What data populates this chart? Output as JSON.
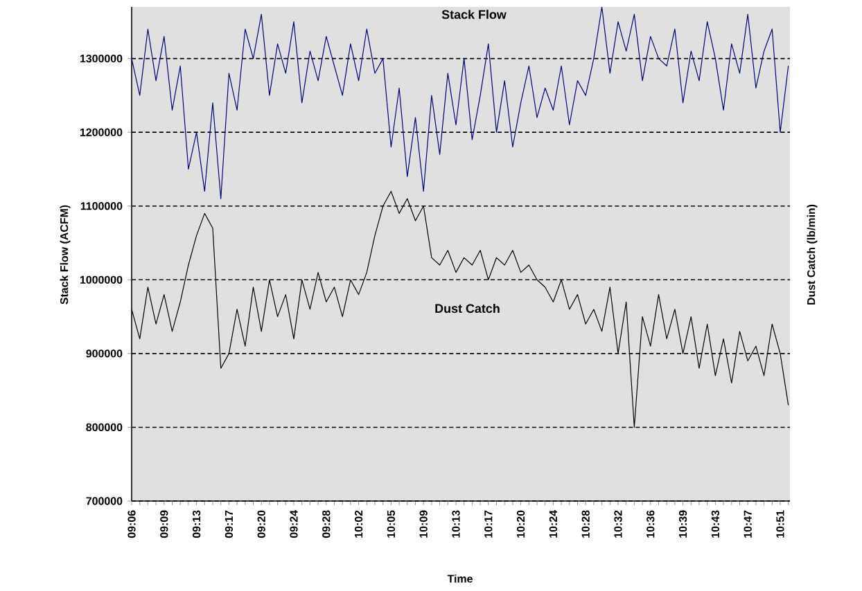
{
  "chart_data": {
    "type": "line",
    "xlabel": "Time",
    "ylabel": "Stack Flow (ACFM)",
    "y2label": "Dust Catch (lb/min)",
    "categories": [
      "09:06",
      null,
      null,
      null,
      "09:09",
      null,
      null,
      null,
      "09:13",
      null,
      null,
      null,
      "09:17",
      null,
      null,
      null,
      "09:20",
      null,
      null,
      null,
      "09:24",
      null,
      null,
      null,
      "09:28",
      null,
      null,
      null,
      "10:02",
      null,
      null,
      null,
      "10:05",
      null,
      null,
      null,
      "10:09",
      null,
      null,
      null,
      "10:13",
      null,
      null,
      null,
      "10:17",
      null,
      null,
      null,
      "10:20",
      null,
      null,
      null,
      "10:24",
      null,
      null,
      null,
      "10:28",
      null,
      null,
      null,
      "10:32",
      null,
      null,
      null,
      "10:36",
      null,
      null,
      null,
      "10:39",
      null,
      null,
      null,
      "10:43",
      null,
      null,
      null,
      "10:47",
      null,
      null,
      null,
      "10:51",
      null
    ],
    "series": [
      {
        "color": "#000080",
        "values": [
          1300000,
          1250000,
          1340000,
          1270000,
          1330000,
          1230000,
          1290000,
          1150000,
          1200000,
          1120000,
          1240000,
          1110000,
          1280000,
          1230000,
          1340000,
          1300000,
          1360000,
          1250000,
          1320000,
          1280000,
          1350000,
          1240000,
          1310000,
          1270000,
          1330000,
          1290000,
          1250000,
          1320000,
          1270000,
          1340000,
          1280000,
          1300000,
          1180000,
          1260000,
          1140000,
          1220000,
          1120000,
          1250000,
          1170000,
          1280000,
          1210000,
          1300000,
          1190000,
          1250000,
          1320000,
          1200000,
          1270000,
          1180000,
          1240000,
          1290000,
          1220000,
          1260000,
          1230000,
          1290000,
          1210000,
          1270000,
          1250000,
          1300000,
          1370000,
          1280000,
          1350000,
          1310000,
          1360000,
          1270000,
          1330000,
          1300000,
          1290000,
          1340000,
          1240000,
          1310000,
          1270000,
          1350000,
          1300000,
          1230000,
          1320000,
          1280000,
          1360000,
          1260000,
          1310000,
          1340000,
          1200000,
          1290000
        ]
      },
      {
        "color": "#000000",
        "values": [
          960000,
          920000,
          990000,
          940000,
          980000,
          930000,
          970000,
          1020000,
          1060000,
          1090000,
          1070000,
          880000,
          900000,
          960000,
          910000,
          990000,
          930000,
          1000000,
          950000,
          980000,
          920000,
          1000000,
          960000,
          1010000,
          970000,
          990000,
          950000,
          1000000,
          980000,
          1010000,
          1060000,
          1100000,
          1120000,
          1090000,
          1110000,
          1080000,
          1100000,
          1030000,
          1020000,
          1040000,
          1010000,
          1030000,
          1020000,
          1040000,
          1000000,
          1030000,
          1020000,
          1040000,
          1010000,
          1020000,
          1000000,
          990000,
          970000,
          1000000,
          960000,
          980000,
          940000,
          960000,
          930000,
          990000,
          900000,
          970000,
          800000,
          950000,
          910000,
          980000,
          920000,
          960000,
          900000,
          950000,
          880000,
          940000,
          870000,
          920000,
          860000,
          930000,
          890000,
          910000,
          870000,
          940000,
          900000,
          830000
        ]
      }
    ],
    "ylim": [
      700000,
      1370000
    ],
    "yticks": [
      700000,
      800000,
      900000,
      1000000,
      1100000,
      1200000,
      1300000
    ],
    "grid": "y",
    "marker": "none",
    "line_style": "solid",
    "annotations": [
      "Stack Flow",
      "Dust Catch"
    ]
  }
}
